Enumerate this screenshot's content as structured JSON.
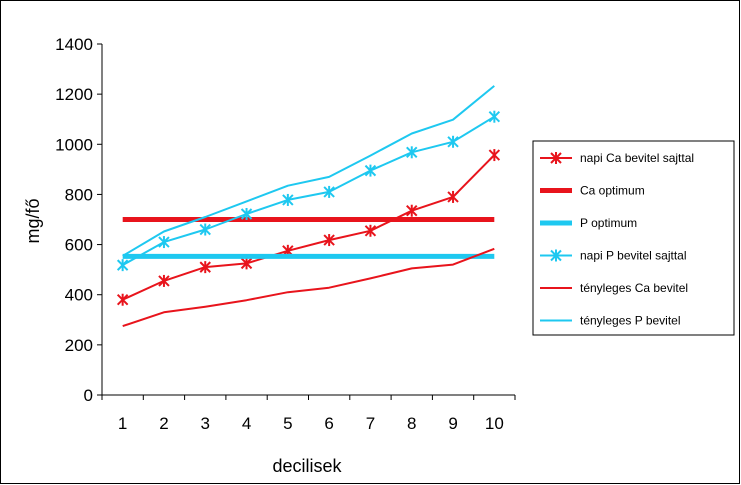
{
  "chart_data": {
    "type": "line",
    "title": "",
    "xlabel": "decilisek",
    "ylabel": "mg/fő",
    "categories": [
      "1",
      "2",
      "3",
      "4",
      "5",
      "6",
      "7",
      "8",
      "9",
      "10"
    ],
    "ylim": [
      0,
      1400
    ],
    "yticks": [
      0,
      200,
      400,
      600,
      800,
      1000,
      1200,
      1400
    ],
    "grid": false,
    "legend_position": "right",
    "series": [
      {
        "name": "napi Ca bevitel sajttal",
        "color": "#e8141c",
        "marker": "star",
        "width": 2,
        "values": [
          380,
          455,
          510,
          525,
          575,
          618,
          655,
          735,
          790,
          957
        ]
      },
      {
        "name": "Ca optimum",
        "color": "#e8141c",
        "marker": "none",
        "width": 5,
        "values": [
          700,
          700,
          700,
          700,
          700,
          700,
          700,
          700,
          700,
          700
        ]
      },
      {
        "name": "P optimum",
        "color": "#1ec8f0",
        "marker": "none",
        "width": 5,
        "values": [
          553,
          553,
          553,
          553,
          553,
          553,
          553,
          553,
          553,
          553
        ]
      },
      {
        "name": "napi P bevitel sajttal",
        "color": "#1ec8f0",
        "marker": "star",
        "width": 2,
        "values": [
          518,
          610,
          660,
          722,
          778,
          810,
          895,
          968,
          1010,
          1110
        ]
      },
      {
        "name": "tényleges Ca bevitel",
        "color": "#e8141c",
        "marker": "none",
        "width": 2,
        "values": [
          275,
          330,
          352,
          378,
          410,
          428,
          465,
          505,
          520,
          583
        ]
      },
      {
        "name": "tényleges P bevitel",
        "color": "#1ec8f0",
        "marker": "none",
        "width": 2,
        "values": [
          555,
          652,
          710,
          772,
          835,
          870,
          955,
          1043,
          1098,
          1233
        ]
      }
    ]
  }
}
